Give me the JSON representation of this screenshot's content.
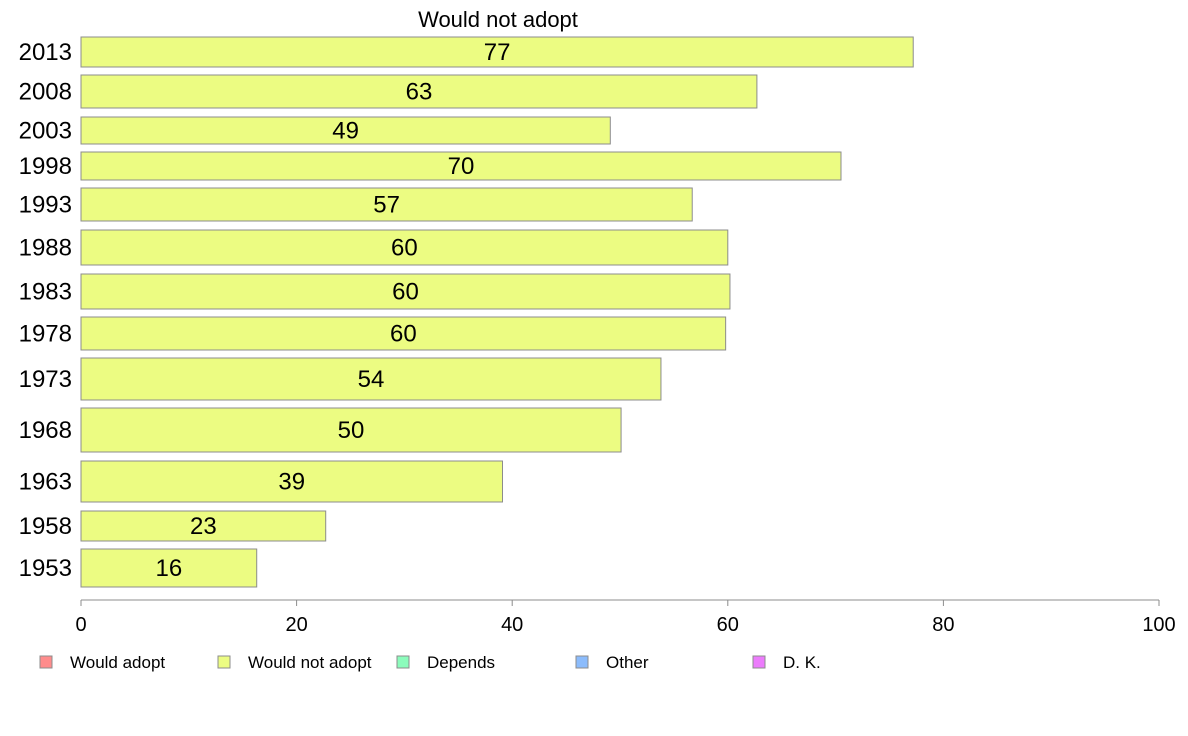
{
  "chart_data": {
    "type": "bar",
    "orientation": "horizontal",
    "title": "Would not adopt",
    "categories": [
      "2013",
      "2008",
      "2003",
      "1998",
      "1993",
      "1988",
      "1983",
      "1978",
      "1973",
      "1968",
      "1963",
      "1958",
      "1953"
    ],
    "series": [
      {
        "name": "Would not adopt",
        "values": [
          77,
          63,
          49,
          70,
          57,
          60,
          60,
          60,
          54,
          50,
          39,
          23,
          16
        ],
        "precise_values": [
          77.2,
          62.7,
          49.1,
          70.5,
          56.7,
          60.0,
          60.2,
          59.8,
          53.8,
          50.1,
          39.1,
          22.7,
          16.3
        ]
      }
    ],
    "xlim": [
      0,
      100
    ],
    "x_ticks": [
      "0",
      "20",
      "40",
      "60",
      "80",
      "100"
    ],
    "legend": {
      "placement": "bottom",
      "items": [
        {
          "label": "Would adopt",
          "color": "#ff8c8c"
        },
        {
          "label": "Would not adopt",
          "color": "#ecfc82"
        },
        {
          "label": "Depends",
          "color": "#8cfcbc"
        },
        {
          "label": "Other",
          "color": "#8cbcfc"
        },
        {
          "label": "D. K.",
          "color": "#ec7cfc"
        }
      ]
    },
    "bar_color": "#ecfc82",
    "bar_stroke": "#8c8c8c",
    "axis_color": "#8c8c8c"
  }
}
